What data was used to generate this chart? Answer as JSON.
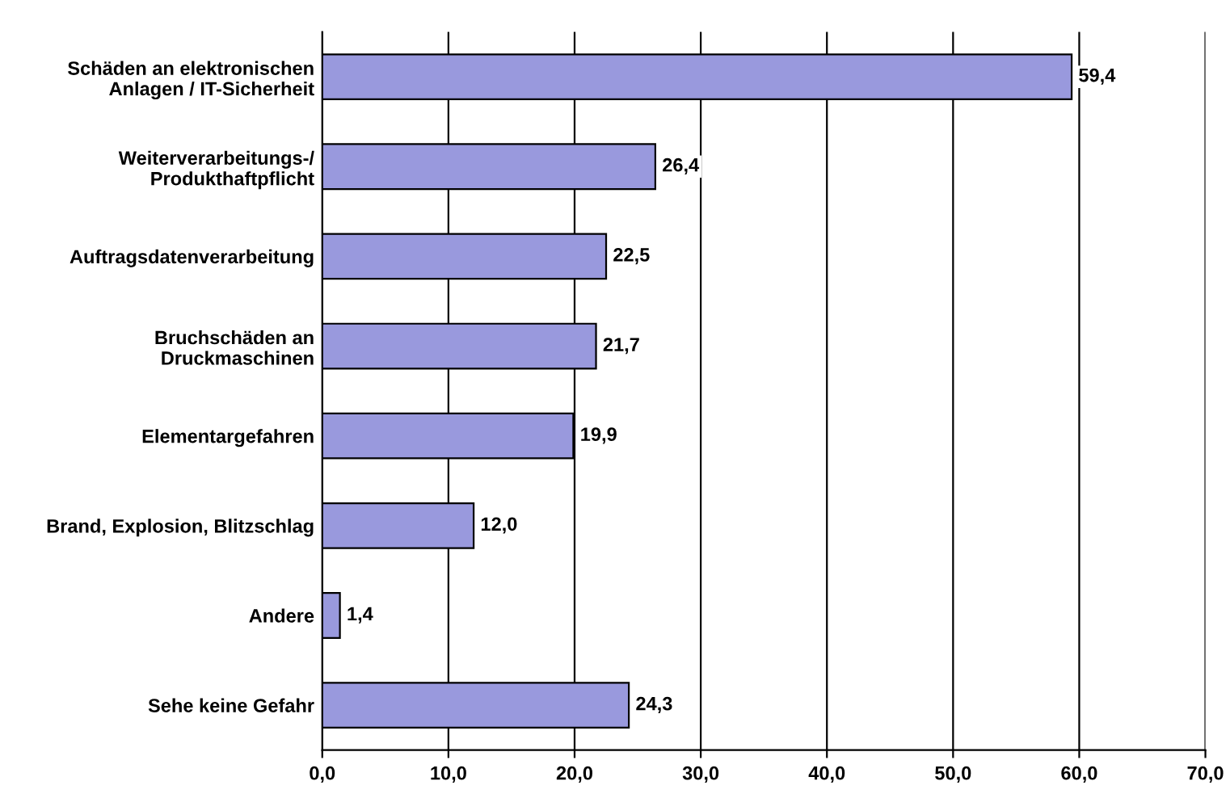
{
  "chart_data": {
    "type": "bar",
    "orientation": "horizontal",
    "categories": [
      "Schäden an elektronischen\nAnlagen / IT-Sicherheit",
      "Weiterverarbeitungs-/\nProdukthaftpflicht",
      "Auftragsdatenverarbeitung",
      "Bruchschäden an\nDruckmaschinen",
      "Elementargefahren",
      "Brand, Explosion, Blitzschlag",
      "Andere",
      "Sehe keine Gefahr"
    ],
    "values": [
      59.4,
      26.4,
      22.5,
      21.7,
      19.9,
      12.0,
      1.4,
      24.3
    ],
    "value_labels": [
      "59,4",
      "26,4",
      "22,5",
      "21,7",
      "19,9",
      "12,0",
      "1,4",
      "24,3"
    ],
    "color": "#9999dd",
    "xlim": [
      0,
      70
    ],
    "xticks": [
      {
        "value": 0,
        "label": "0,0"
      },
      {
        "value": 10,
        "label": "10,0"
      },
      {
        "value": 20,
        "label": "20,0"
      },
      {
        "value": 30,
        "label": "30,0"
      },
      {
        "value": 40,
        "label": "40,0"
      },
      {
        "value": 50,
        "label": "50,0"
      },
      {
        "value": 60,
        "label": "60,0"
      },
      {
        "value": 70,
        "label": "70,0"
      }
    ],
    "grid": "x"
  }
}
